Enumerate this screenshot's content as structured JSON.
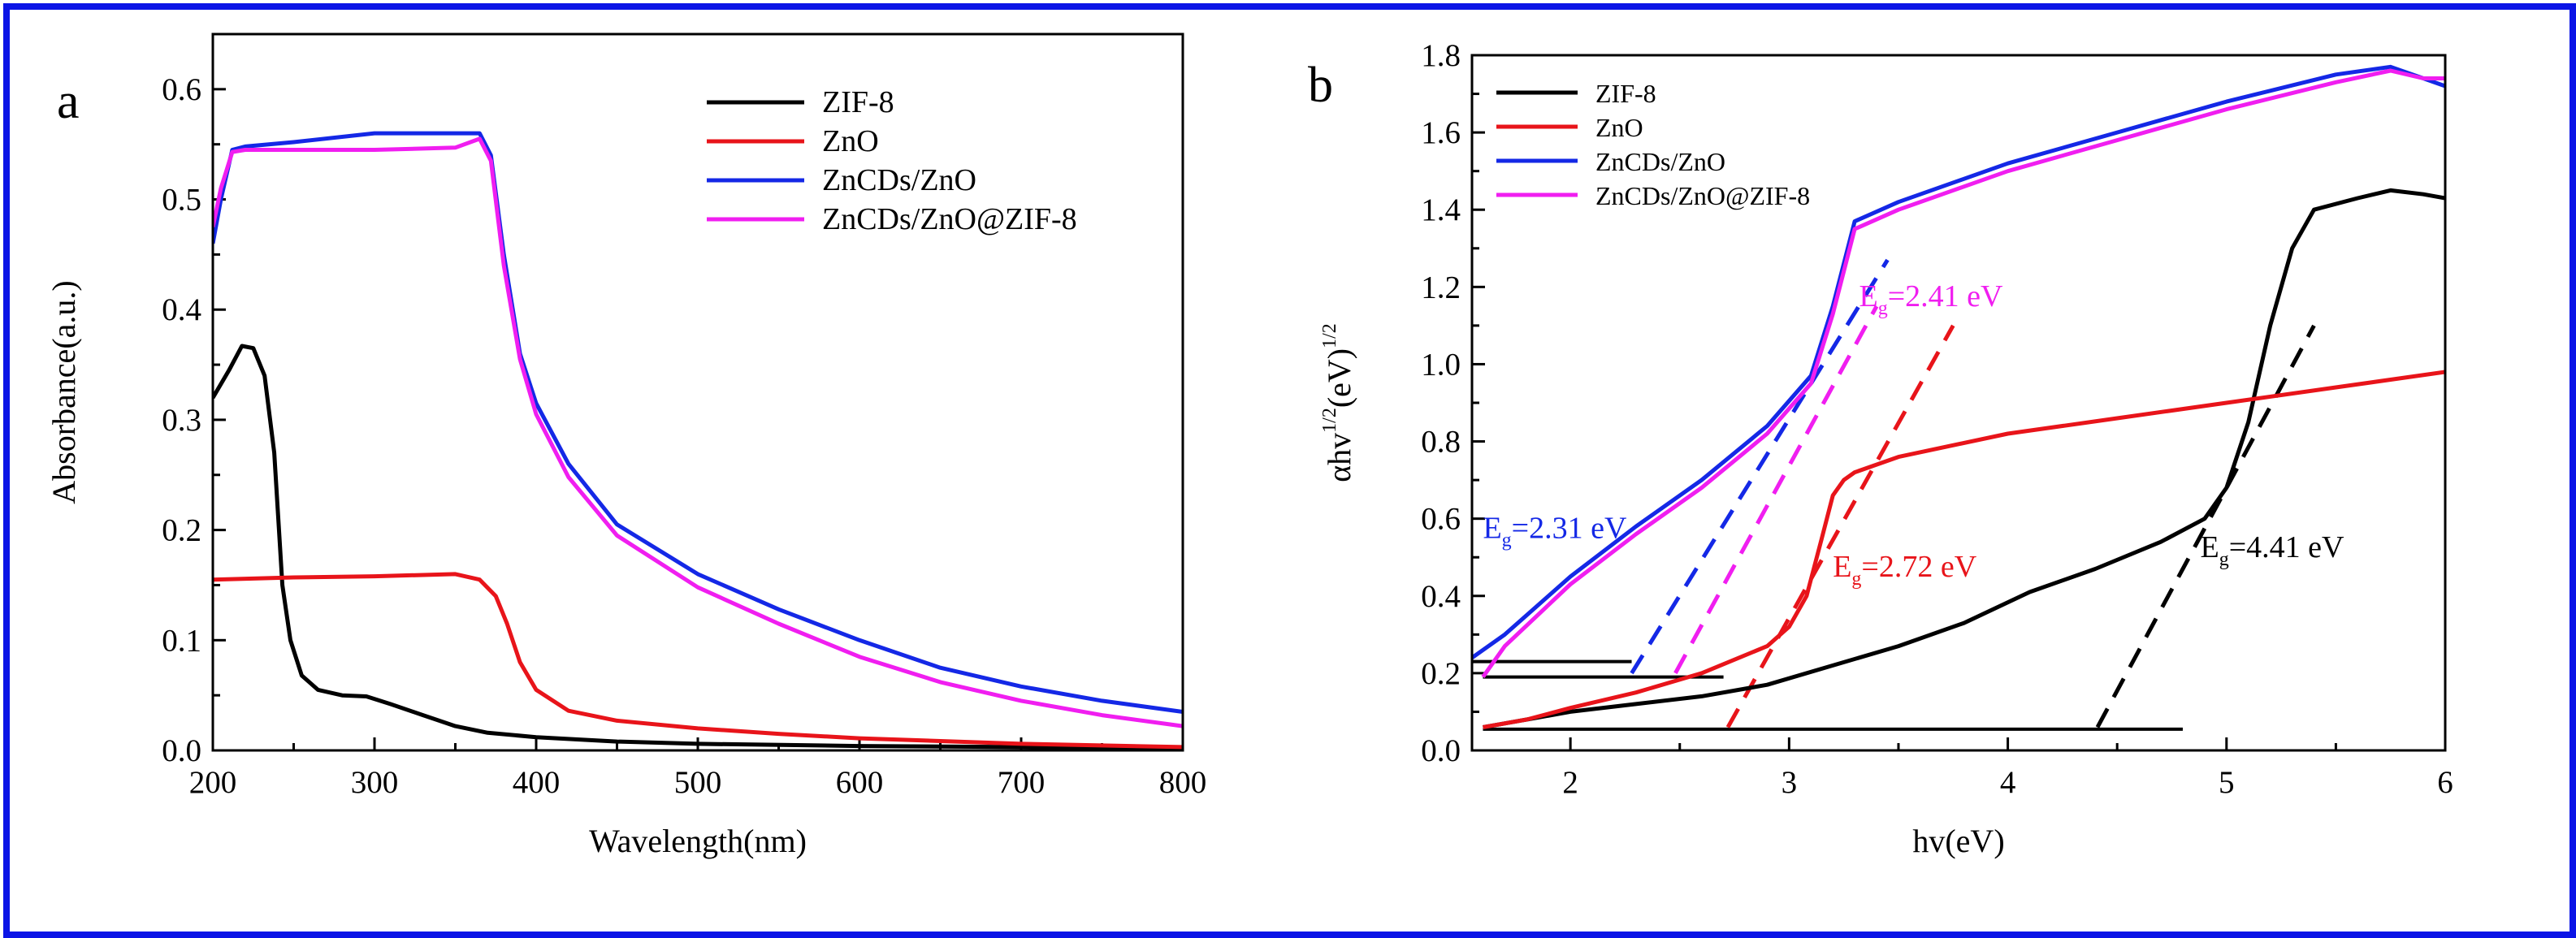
{
  "chart_data": [
    {
      "type": "line",
      "panel_label": "a",
      "xlabel": "Wavelength(nm)",
      "ylabel": "Absorbance(a.u.)",
      "xlim": [
        200,
        800
      ],
      "ylim": [
        0.0,
        0.65
      ],
      "xticks": [
        200,
        300,
        400,
        500,
        600,
        700,
        800
      ],
      "xtick_labels": [
        "200",
        "300",
        "400",
        "500",
        "600",
        "700",
        "800"
      ],
      "yticks": [
        0.0,
        0.1,
        0.2,
        0.3,
        0.4,
        0.5,
        0.6
      ],
      "ytick_labels": [
        "0.0",
        "0.1",
        "0.2",
        "0.3",
        "0.4",
        "0.5",
        "0.6"
      ],
      "legend_position": "top-right",
      "series": [
        {
          "name": "ZIF-8",
          "color": "#000000",
          "x": [
            200,
            210,
            218,
            225,
            232,
            238,
            243,
            248,
            255,
            265,
            280,
            295,
            310,
            330,
            350,
            370,
            400,
            450,
            500,
            600,
            700,
            800
          ],
          "y": [
            0.32,
            0.345,
            0.367,
            0.365,
            0.34,
            0.27,
            0.15,
            0.1,
            0.068,
            0.055,
            0.05,
            0.049,
            0.042,
            0.032,
            0.022,
            0.016,
            0.012,
            0.008,
            0.006,
            0.004,
            0.003,
            0.002
          ]
        },
        {
          "name": "ZnO",
          "color": "#e8141a",
          "x": [
            200,
            250,
            300,
            350,
            365,
            375,
            382,
            390,
            400,
            420,
            450,
            500,
            550,
            600,
            700,
            800
          ],
          "y": [
            0.155,
            0.157,
            0.158,
            0.16,
            0.155,
            0.14,
            0.115,
            0.08,
            0.055,
            0.036,
            0.027,
            0.02,
            0.015,
            0.011,
            0.006,
            0.003
          ]
        },
        {
          "name": "ZnCDs/ZnO",
          "color": "#1428e6",
          "x": [
            200,
            205,
            212,
            220,
            250,
            300,
            350,
            365,
            372,
            380,
            390,
            400,
            420,
            450,
            500,
            550,
            600,
            650,
            700,
            750,
            800
          ],
          "y": [
            0.46,
            0.5,
            0.545,
            0.548,
            0.552,
            0.56,
            0.56,
            0.56,
            0.54,
            0.45,
            0.36,
            0.315,
            0.26,
            0.205,
            0.16,
            0.128,
            0.1,
            0.075,
            0.058,
            0.045,
            0.035
          ]
        },
        {
          "name": "ZnCDs/ZnO@ZIF-8",
          "color": "#f01ef0",
          "x": [
            200,
            205,
            212,
            220,
            250,
            300,
            350,
            365,
            372,
            380,
            390,
            400,
            420,
            450,
            500,
            550,
            600,
            650,
            700,
            750,
            800
          ],
          "y": [
            0.475,
            0.51,
            0.543,
            0.545,
            0.545,
            0.545,
            0.547,
            0.555,
            0.535,
            0.44,
            0.355,
            0.305,
            0.248,
            0.195,
            0.148,
            0.115,
            0.085,
            0.062,
            0.045,
            0.032,
            0.022
          ]
        }
      ]
    },
    {
      "type": "line",
      "panel_label": "b",
      "xlabel": "hv(eV)",
      "ylabel_main": "αhv",
      "ylabel_sup1": "1/2",
      "ylabel_unit": "(eV)",
      "ylabel_sup2": "1/2",
      "xlim": [
        1.55,
        6.0
      ],
      "ylim": [
        0.0,
        1.8
      ],
      "xticks": [
        2,
        3,
        4,
        5,
        6
      ],
      "xtick_labels": [
        "2",
        "3",
        "4",
        "5",
        "6"
      ],
      "yticks": [
        0.0,
        0.2,
        0.4,
        0.6,
        0.8,
        1.0,
        1.2,
        1.4,
        1.6,
        1.8
      ],
      "ytick_labels": [
        "0.0",
        "0.2",
        "0.4",
        "0.6",
        "0.8",
        "1.0",
        "1.2",
        "1.4",
        "1.6",
        "1.8"
      ],
      "legend_position": "top-left",
      "series": [
        {
          "name": "ZIF-8",
          "color": "#000000",
          "x": [
            1.6,
            1.8,
            2.0,
            2.3,
            2.6,
            2.9,
            3.2,
            3.5,
            3.8,
            4.1,
            4.4,
            4.7,
            4.9,
            5.0,
            5.1,
            5.2,
            5.3,
            5.4,
            5.6,
            5.75,
            5.9,
            6.0
          ],
          "y": [
            0.06,
            0.08,
            0.1,
            0.12,
            0.14,
            0.17,
            0.22,
            0.27,
            0.33,
            0.41,
            0.47,
            0.54,
            0.6,
            0.68,
            0.85,
            1.1,
            1.3,
            1.4,
            1.43,
            1.45,
            1.44,
            1.43
          ]
        },
        {
          "name": "ZnO",
          "color": "#e8141a",
          "x": [
            1.6,
            1.8,
            2.0,
            2.3,
            2.6,
            2.9,
            3.0,
            3.08,
            3.15,
            3.2,
            3.25,
            3.3,
            3.5,
            4.0,
            4.5,
            5.0,
            5.5,
            6.0
          ],
          "y": [
            0.06,
            0.08,
            0.11,
            0.15,
            0.2,
            0.27,
            0.32,
            0.4,
            0.55,
            0.66,
            0.7,
            0.72,
            0.76,
            0.82,
            0.86,
            0.9,
            0.94,
            0.98
          ]
        },
        {
          "name": "ZnCDs/ZnO",
          "color": "#1428e6",
          "x": [
            1.55,
            1.7,
            2.0,
            2.3,
            2.6,
            2.9,
            3.1,
            3.2,
            3.3,
            3.5,
            4.0,
            4.5,
            5.0,
            5.5,
            5.75,
            5.9,
            6.0
          ],
          "y": [
            0.24,
            0.3,
            0.45,
            0.58,
            0.7,
            0.84,
            0.97,
            1.15,
            1.37,
            1.42,
            1.52,
            1.6,
            1.68,
            1.75,
            1.77,
            1.74,
            1.72
          ]
        },
        {
          "name": "ZnCDs/ZnO@ZIF-8",
          "color": "#f01ef0",
          "x": [
            1.6,
            1.7,
            2.0,
            2.3,
            2.6,
            2.9,
            3.1,
            3.2,
            3.3,
            3.5,
            4.0,
            4.5,
            5.0,
            5.5,
            5.75,
            5.9,
            6.0
          ],
          "y": [
            0.19,
            0.27,
            0.43,
            0.56,
            0.68,
            0.82,
            0.95,
            1.13,
            1.35,
            1.4,
            1.5,
            1.58,
            1.66,
            1.73,
            1.76,
            1.74,
            1.74
          ]
        }
      ],
      "fit_lines": [
        {
          "color": "#1428e6",
          "x": [
            2.28,
            3.45
          ],
          "y": [
            0.2,
            1.27
          ]
        },
        {
          "color": "#f01ef0",
          "x": [
            2.48,
            3.4
          ],
          "y": [
            0.2,
            1.15
          ]
        },
        {
          "color": "#e8141a",
          "x": [
            2.72,
            3.75
          ],
          "y": [
            0.06,
            1.1
          ]
        },
        {
          "color": "#000000",
          "x": [
            4.41,
            5.4
          ],
          "y": [
            0.06,
            1.1
          ]
        }
      ],
      "baselines": [
        {
          "color": "#000000",
          "x": [
            1.55,
            2.28
          ],
          "y": [
            0.23,
            0.23
          ]
        },
        {
          "color": "#000000",
          "x": [
            1.6,
            2.7
          ],
          "y": [
            0.19,
            0.19
          ]
        },
        {
          "color": "#000000",
          "x": [
            1.6,
            4.8
          ],
          "y": [
            0.055,
            0.055
          ]
        }
      ],
      "annotations": [
        {
          "label_E": "E",
          "label_sub": "g",
          "value": "=2.31 eV",
          "color": "#1428e6",
          "x": 1.6,
          "y": 0.55
        },
        {
          "label_E": "E",
          "label_sub": "g",
          "value": "=2.41 eV",
          "color": "#f01ef0",
          "x": 3.32,
          "y": 1.15
        },
        {
          "label_E": "E",
          "label_sub": "g",
          "value": "=2.72 eV",
          "color": "#e8141a",
          "x": 3.2,
          "y": 0.45
        },
        {
          "label_E": "E",
          "label_sub": "g",
          "value": "=4.41 eV",
          "color": "#000000",
          "x": 4.88,
          "y": 0.5
        }
      ]
    }
  ]
}
